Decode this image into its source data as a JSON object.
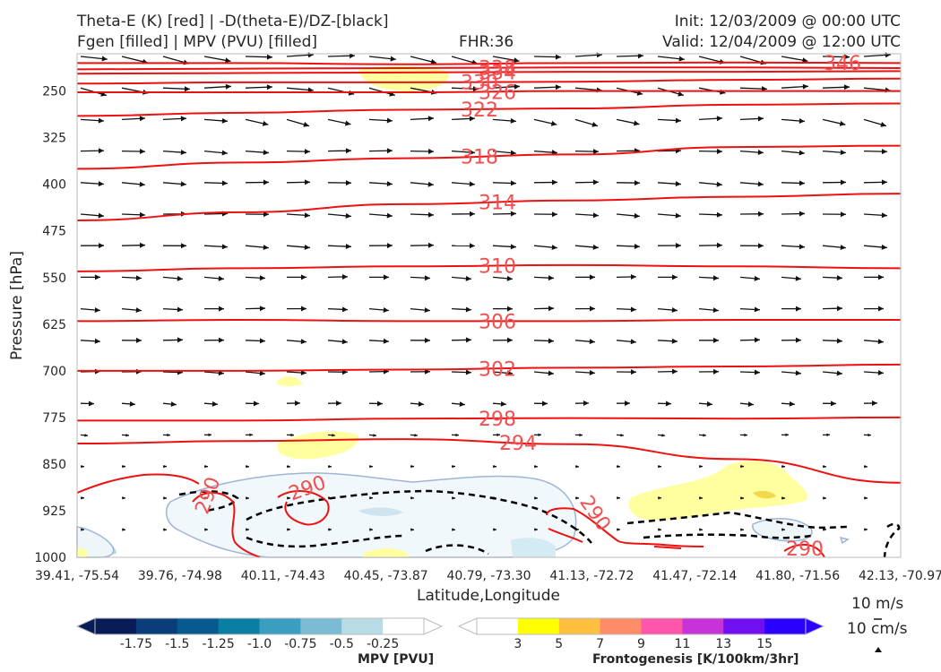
{
  "header": {
    "title_line1": "Theta-E (K) [red] | -D(theta-E)/DZ-[black]",
    "title_line2": "Fgen [filled] | MPV (PVU) [filled]",
    "fhr": "FHR:36",
    "init": "Init: 12/03/2009 @ 00:00 UTC",
    "valid": "Valid: 12/04/2009 @ 12:00 UTC"
  },
  "chart_data": {
    "type": "contour",
    "xlabel": "Latitude,Longitude",
    "ylabel": "Pressure [hPa]",
    "x_ticks": [
      "39.41, -75.54",
      "39.76, -74.98",
      "40.11, -74.43",
      "40.45, -73.87",
      "40.79, -73.30",
      "41.13, -72.72",
      "41.47, -72.14",
      "41.80, -71.56",
      "42.13, -70.97"
    ],
    "y_ticks": [
      250,
      325,
      400,
      475,
      550,
      625,
      700,
      775,
      850,
      925,
      1000
    ],
    "ylim": [
      1000,
      190
    ],
    "theta_e_contours": [
      {
        "label": "346",
        "pressure": [
          205,
          205,
          207,
          205,
          204,
          205
        ]
      },
      {
        "label": "338",
        "pressure": [
          215,
          214,
          213,
          212,
          212,
          213
        ]
      },
      {
        "label": "334",
        "pressure": [
          222,
          221,
          220,
          219,
          219,
          218
        ]
      },
      {
        "label": "330",
        "pressure": [
          238,
          236,
          236,
          235,
          232,
          230
        ]
      },
      {
        "label": "326",
        "pressure": [
          252,
          252,
          252,
          250,
          250,
          250
        ]
      },
      {
        "label": "322",
        "pressure": [
          290,
          285,
          280,
          278,
          272,
          270
        ]
      },
      {
        "label": "318",
        "pressure": [
          375,
          365,
          358,
          352,
          340,
          338
        ]
      },
      {
        "label": "314",
        "pressure": [
          458,
          445,
          432,
          426,
          420,
          415
        ]
      },
      {
        "label": "310",
        "pressure": [
          540,
          535,
          532,
          530,
          532,
          535
        ]
      },
      {
        "label": "306",
        "pressure": [
          620,
          618,
          620,
          620,
          618,
          618
        ]
      },
      {
        "label": "302",
        "pressure": [
          700,
          700,
          698,
          695,
          693,
          690
        ]
      },
      {
        "label": "298",
        "pressure": [
          780,
          780,
          777,
          776,
          777,
          775
        ]
      },
      {
        "label": "294",
        "pressure": [
          817,
          813,
          810,
          818,
          842,
          880
        ]
      }
    ],
    "isolated_labels": [
      "290",
      "290",
      "290",
      "290"
    ],
    "mpv_colorbar": {
      "label": "MPV [PVU]",
      "ticks": [
        "-1.75",
        "-1.5",
        "-1.25",
        "-1.0",
        "-0.75",
        "-0.5",
        "-0.25"
      ],
      "colors": [
        "#081d58",
        "#0a3d7a",
        "#065a8f",
        "#0a7fa3",
        "#3b9ec0",
        "#7bbcd4",
        "#b8dce6",
        "#ffffff"
      ]
    },
    "fgen_colorbar": {
      "label": "Frontogenesis [K/100km/3hr]",
      "ticks": [
        "3",
        "5",
        "7",
        "9",
        "11",
        "13",
        "15"
      ],
      "colors": [
        "#ffffff",
        "#ffff00",
        "#ffc040",
        "#ff8c69",
        "#ff55aa",
        "#c833d9",
        "#7010f0",
        "#2a00ff"
      ]
    },
    "reference_vectors": [
      "10 m/s",
      "10 cm/s"
    ]
  }
}
